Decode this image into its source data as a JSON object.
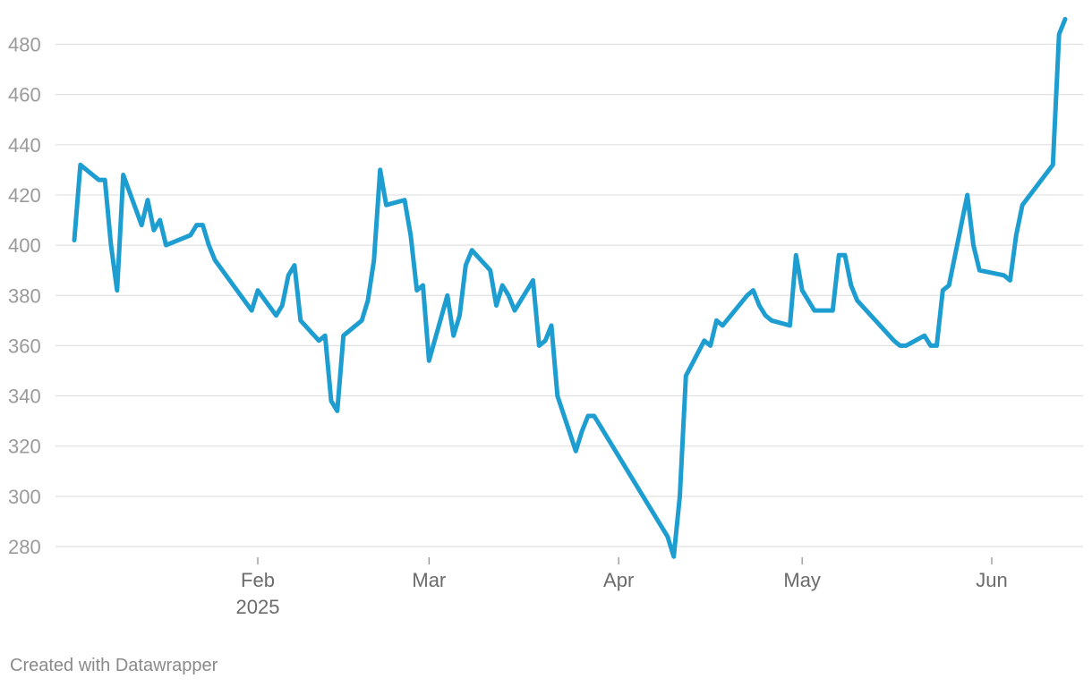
{
  "chart_data": {
    "type": "line",
    "title": "",
    "xlabel": "",
    "ylabel": "",
    "ylim": [
      272,
      490
    ],
    "yticks": [
      280,
      300,
      320,
      340,
      360,
      380,
      400,
      420,
      440,
      460,
      480
    ],
    "xlim": [
      "2025-01-02",
      "2025-06-13"
    ],
    "xticks": [
      {
        "date": "2025-02-01",
        "label": "Feb",
        "sublabel": "2025"
      },
      {
        "date": "2025-03-01",
        "label": "Mar",
        "sublabel": ""
      },
      {
        "date": "2025-04-01",
        "label": "Apr",
        "sublabel": ""
      },
      {
        "date": "2025-05-01",
        "label": "May",
        "sublabel": ""
      },
      {
        "date": "2025-06-01",
        "label": "Jun",
        "sublabel": ""
      }
    ],
    "grid": true,
    "line_color": "#1d9dd0",
    "series": [
      {
        "points": [
          [
            "2025-01-02",
            402
          ],
          [
            "2025-01-03",
            432
          ],
          [
            "2025-01-06",
            426
          ],
          [
            "2025-01-07",
            426
          ],
          [
            "2025-01-08",
            400
          ],
          [
            "2025-01-09",
            382
          ],
          [
            "2025-01-10",
            428
          ],
          [
            "2025-01-13",
            408
          ],
          [
            "2025-01-14",
            418
          ],
          [
            "2025-01-15",
            406
          ],
          [
            "2025-01-16",
            410
          ],
          [
            "2025-01-17",
            400
          ],
          [
            "2025-01-21",
            404
          ],
          [
            "2025-01-22",
            408
          ],
          [
            "2025-01-23",
            408
          ],
          [
            "2025-01-24",
            400
          ],
          [
            "2025-01-25",
            394
          ],
          [
            "2025-01-31",
            374
          ],
          [
            "2025-02-01",
            382
          ],
          [
            "2025-02-04",
            372
          ],
          [
            "2025-02-05",
            376
          ],
          [
            "2025-02-06",
            388
          ],
          [
            "2025-02-07",
            392
          ],
          [
            "2025-02-08",
            370
          ],
          [
            "2025-02-11",
            362
          ],
          [
            "2025-02-12",
            364
          ],
          [
            "2025-02-13",
            338
          ],
          [
            "2025-02-14",
            334
          ],
          [
            "2025-02-15",
            364
          ],
          [
            "2025-02-18",
            370
          ],
          [
            "2025-02-19",
            378
          ],
          [
            "2025-02-20",
            394
          ],
          [
            "2025-02-21",
            430
          ],
          [
            "2025-02-22",
            416
          ],
          [
            "2025-02-25",
            418
          ],
          [
            "2025-02-26",
            404
          ],
          [
            "2025-02-27",
            382
          ],
          [
            "2025-02-28",
            384
          ],
          [
            "2025-03-01",
            354
          ],
          [
            "2025-03-04",
            380
          ],
          [
            "2025-03-05",
            364
          ],
          [
            "2025-03-06",
            372
          ],
          [
            "2025-03-07",
            392
          ],
          [
            "2025-03-08",
            398
          ],
          [
            "2025-03-11",
            390
          ],
          [
            "2025-03-12",
            376
          ],
          [
            "2025-03-13",
            384
          ],
          [
            "2025-03-14",
            380
          ],
          [
            "2025-03-15",
            374
          ],
          [
            "2025-03-18",
            386
          ],
          [
            "2025-03-19",
            360
          ],
          [
            "2025-03-20",
            362
          ],
          [
            "2025-03-21",
            368
          ],
          [
            "2025-03-22",
            340
          ],
          [
            "2025-03-25",
            318
          ],
          [
            "2025-03-26",
            326
          ],
          [
            "2025-03-27",
            332
          ],
          [
            "2025-03-28",
            332
          ],
          [
            "2025-04-09",
            284
          ],
          [
            "2025-04-10",
            276
          ],
          [
            "2025-04-11",
            300
          ],
          [
            "2025-04-12",
            348
          ],
          [
            "2025-04-15",
            362
          ],
          [
            "2025-04-16",
            360
          ],
          [
            "2025-04-17",
            370
          ],
          [
            "2025-04-18",
            368
          ],
          [
            "2025-04-22",
            380
          ],
          [
            "2025-04-23",
            382
          ],
          [
            "2025-04-24",
            376
          ],
          [
            "2025-04-25",
            372
          ],
          [
            "2025-04-26",
            370
          ],
          [
            "2025-04-29",
            368
          ],
          [
            "2025-04-30",
            396
          ],
          [
            "2025-05-01",
            382
          ],
          [
            "2025-05-03",
            374
          ],
          [
            "2025-05-06",
            374
          ],
          [
            "2025-05-07",
            396
          ],
          [
            "2025-05-08",
            396
          ],
          [
            "2025-05-09",
            384
          ],
          [
            "2025-05-10",
            378
          ],
          [
            "2025-05-16",
            362
          ],
          [
            "2025-05-17",
            360
          ],
          [
            "2025-05-18",
            360
          ],
          [
            "2025-05-21",
            364
          ],
          [
            "2025-05-22",
            360
          ],
          [
            "2025-05-23",
            360
          ],
          [
            "2025-05-24",
            382
          ],
          [
            "2025-05-25",
            384
          ],
          [
            "2025-05-28",
            420
          ],
          [
            "2025-05-29",
            400
          ],
          [
            "2025-05-30",
            390
          ],
          [
            "2025-06-03",
            388
          ],
          [
            "2025-06-04",
            386
          ],
          [
            "2025-06-05",
            404
          ],
          [
            "2025-06-06",
            416
          ],
          [
            "2025-06-11",
            432
          ],
          [
            "2025-06-12",
            484
          ],
          [
            "2025-06-13",
            490
          ]
        ]
      }
    ]
  },
  "footer": {
    "credit": "Created with Datawrapper"
  }
}
